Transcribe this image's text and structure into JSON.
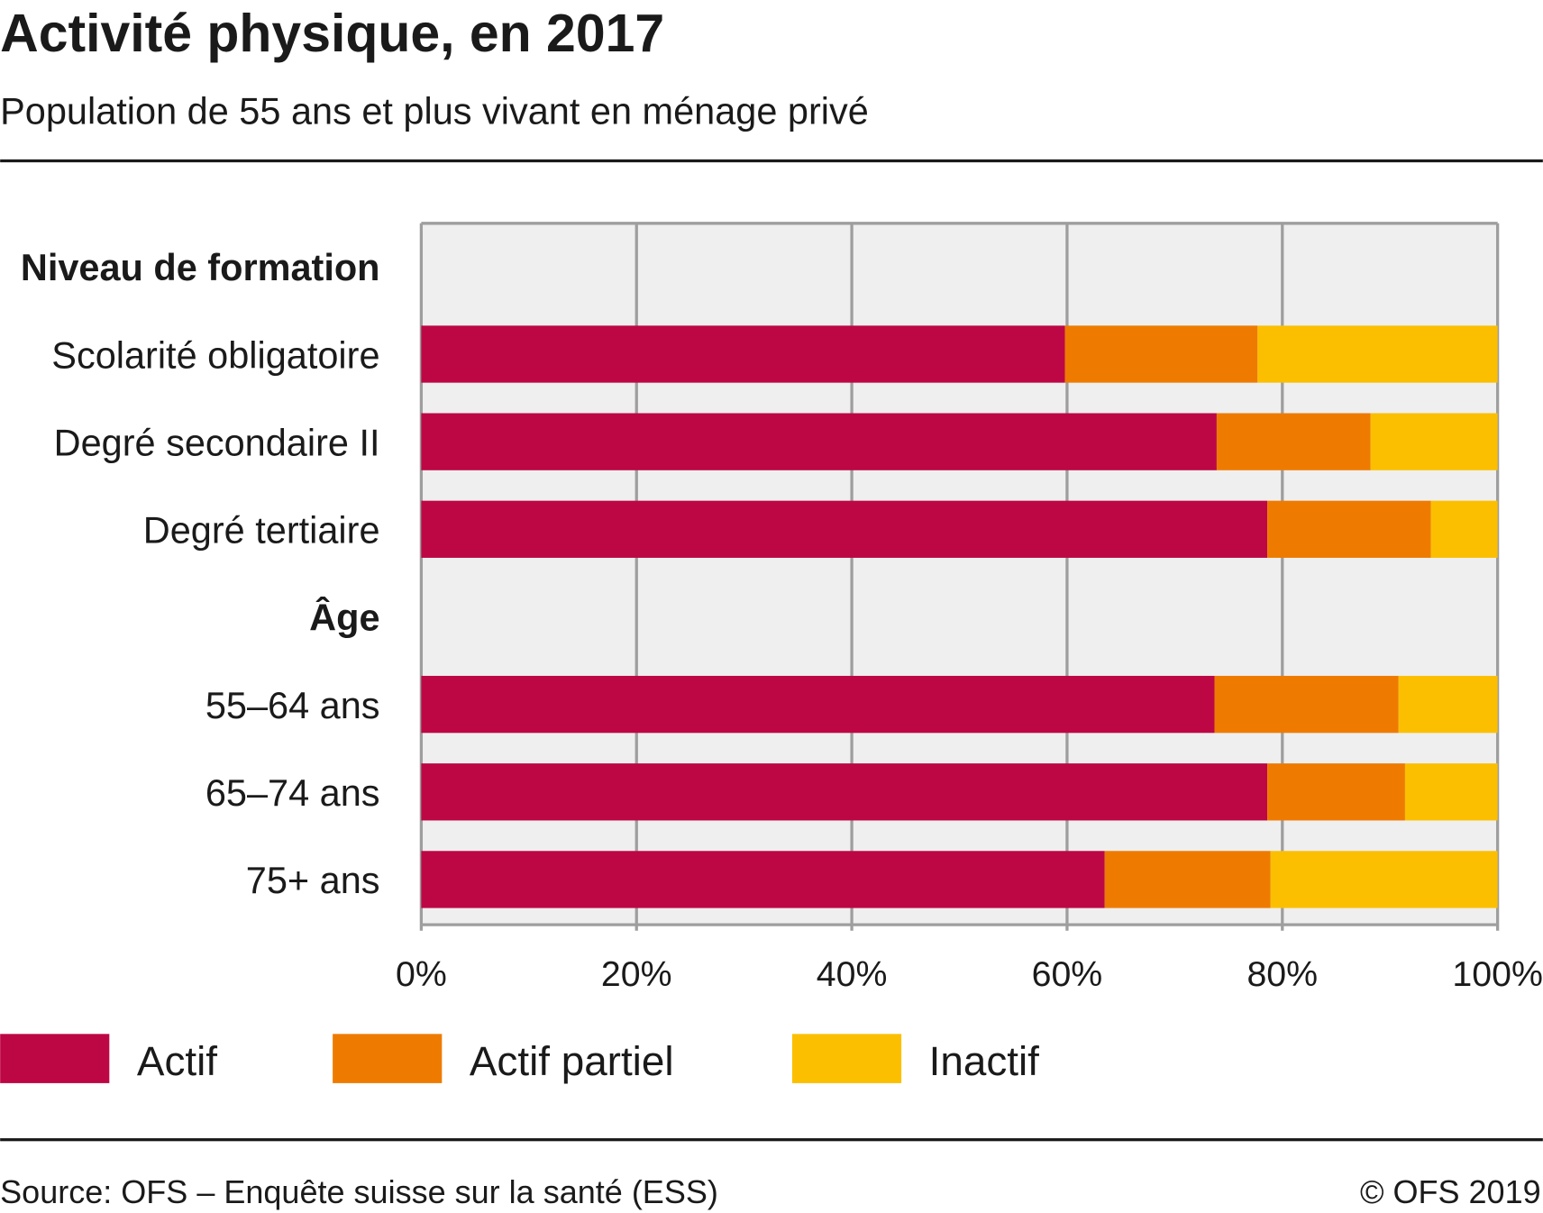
{
  "chart_data": {
    "type": "bar",
    "orientation": "horizontal",
    "stacked": true,
    "title": "Activité physique, en 2017",
    "subtitle": "Population de 55 ans et plus vivant en ménage privé",
    "groups": [
      {
        "header": "Niveau de formation",
        "categories": [
          "Scolarité obligatoire",
          "Degré secondaire II",
          "Degré tertiaire"
        ]
      },
      {
        "header": "Âge",
        "categories": [
          "55–64 ans",
          "65–74 ans",
          "75+ ans"
        ]
      }
    ],
    "categories": [
      "Scolarité obligatoire",
      "Degré secondaire II",
      "Degré tertiaire",
      "55–64 ans",
      "65–74 ans",
      "75+ ans"
    ],
    "series": [
      {
        "name": "Actif",
        "color": "#bd0744",
        "values": [
          59.8,
          73.9,
          78.6,
          73.7,
          78.6,
          63.5
        ]
      },
      {
        "name": "Actif partiel",
        "color": "#ee7b00",
        "values": [
          17.9,
          14.3,
          15.2,
          17.1,
          12.8,
          15.4
        ]
      },
      {
        "name": "Inactif",
        "color": "#fbbf00",
        "values": [
          22.3,
          11.8,
          6.2,
          9.2,
          8.6,
          21.1
        ]
      }
    ],
    "xlim": [
      0,
      100
    ],
    "xticks": [
      "0%",
      "20%",
      "40%",
      "60%",
      "80%",
      "100%"
    ],
    "xtick_values": [
      0,
      20,
      40,
      60,
      80,
      100
    ],
    "grid": true,
    "legend": "bottom-left",
    "source": "Source: OFS – Enquête suisse sur la santé (ESS)",
    "copyright": "© OFS 2019"
  }
}
